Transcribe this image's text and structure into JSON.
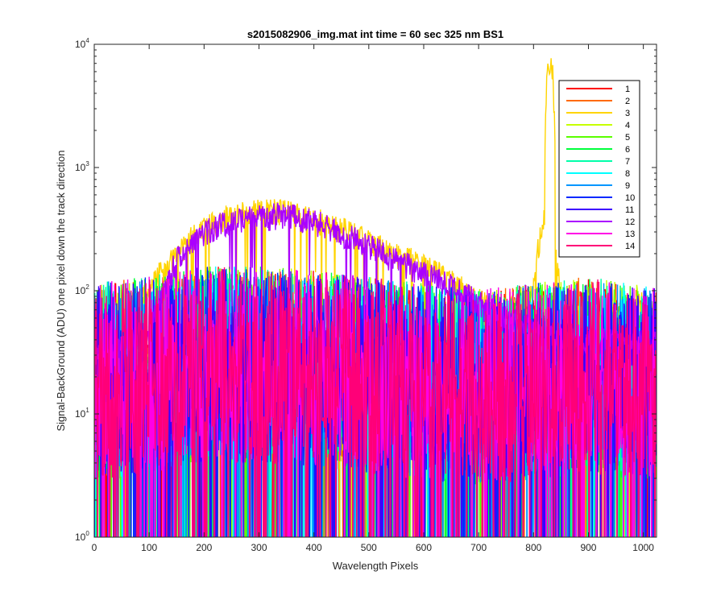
{
  "chart_data": {
    "type": "line",
    "title": "s2015082906_img.mat int time = 60 sec  325 nm BS1",
    "xlabel": "Wavelength Pixels",
    "ylabel": "Signal-BackGround (ADU) one pixel down the track direction",
    "xlim": [
      0,
      1024
    ],
    "ylim": [
      1,
      10000
    ],
    "yscale": "log",
    "xticks": [
      0,
      100,
      200,
      300,
      400,
      500,
      600,
      700,
      800,
      900,
      1000
    ],
    "yticks": [
      {
        "base": "10",
        "exp": "0",
        "value": 1
      },
      {
        "base": "10",
        "exp": "1",
        "value": 10
      },
      {
        "base": "10",
        "exp": "2",
        "value": 100
      },
      {
        "base": "10",
        "exp": "3",
        "value": 1000
      },
      {
        "base": "10",
        "exp": "4",
        "value": 10000
      }
    ],
    "grid": false,
    "legend_position": "top-right",
    "series": [
      {
        "name": "1",
        "color": "#ff0000",
        "profile": "noise",
        "x": [
          0,
          100,
          200,
          300,
          400,
          500,
          600,
          700,
          800,
          900,
          1020
        ],
        "y": [
          20,
          25,
          30,
          30,
          28,
          25,
          22,
          20,
          22,
          25,
          20
        ]
      },
      {
        "name": "2",
        "color": "#ff6a00",
        "profile": "noise",
        "x": [
          0,
          100,
          200,
          300,
          400,
          500,
          600,
          700,
          800,
          900,
          1020
        ],
        "y": [
          22,
          25,
          30,
          30,
          28,
          25,
          22,
          20,
          22,
          25,
          20
        ]
      },
      {
        "name": "3",
        "color": "#ffd400",
        "profile": "signal",
        "x": [
          0,
          60,
          100,
          150,
          200,
          250,
          300,
          350,
          400,
          450,
          500,
          550,
          600,
          650,
          700,
          750,
          800,
          820,
          825,
          830,
          835,
          840,
          850,
          900,
          950,
          1000,
          1020
        ],
        "y": [
          45,
          60,
          100,
          200,
          320,
          420,
          450,
          440,
          380,
          320,
          250,
          200,
          160,
          120,
          80,
          70,
          100,
          400,
          6000,
          7500,
          6000,
          200,
          80,
          60,
          70,
          80,
          60
        ]
      },
      {
        "name": "4",
        "color": "#c6ff00",
        "profile": "noise",
        "x": [
          0,
          100,
          200,
          300,
          400,
          500,
          600,
          700,
          800,
          900,
          1020
        ],
        "y": [
          22,
          25,
          30,
          30,
          28,
          25,
          22,
          20,
          22,
          25,
          20
        ]
      },
      {
        "name": "5",
        "color": "#5aff00",
        "profile": "noise",
        "x": [
          0,
          100,
          200,
          300,
          400,
          500,
          600,
          700,
          800,
          900,
          1020
        ],
        "y": [
          22,
          25,
          30,
          30,
          28,
          25,
          22,
          20,
          22,
          25,
          20
        ]
      },
      {
        "name": "6",
        "color": "#00ff3c",
        "profile": "noise",
        "x": [
          0,
          100,
          200,
          300,
          400,
          500,
          600,
          700,
          800,
          900,
          1020
        ],
        "y": [
          22,
          25,
          30,
          30,
          28,
          25,
          22,
          20,
          22,
          25,
          20
        ]
      },
      {
        "name": "7",
        "color": "#00ffaa",
        "profile": "noise",
        "x": [
          0,
          100,
          200,
          300,
          400,
          500,
          600,
          700,
          800,
          900,
          1020
        ],
        "y": [
          22,
          25,
          30,
          30,
          28,
          25,
          22,
          20,
          22,
          25,
          20
        ]
      },
      {
        "name": "8",
        "color": "#00ffff",
        "profile": "noise",
        "x": [
          0,
          100,
          200,
          300,
          400,
          500,
          600,
          700,
          800,
          900,
          1020
        ],
        "y": [
          22,
          25,
          30,
          30,
          28,
          25,
          22,
          20,
          22,
          25,
          20
        ]
      },
      {
        "name": "9",
        "color": "#0096ff",
        "profile": "noise",
        "x": [
          0,
          100,
          200,
          300,
          400,
          500,
          600,
          700,
          800,
          900,
          1020
        ],
        "y": [
          22,
          25,
          30,
          30,
          28,
          25,
          22,
          20,
          22,
          25,
          20
        ]
      },
      {
        "name": "10",
        "color": "#0028ff",
        "profile": "noise",
        "x": [
          0,
          100,
          200,
          300,
          400,
          500,
          600,
          700,
          800,
          900,
          1020
        ],
        "y": [
          22,
          25,
          30,
          30,
          28,
          25,
          22,
          20,
          22,
          25,
          20
        ]
      },
      {
        "name": "11",
        "color": "#3c00ff",
        "profile": "noise",
        "x": [
          0,
          100,
          200,
          300,
          400,
          500,
          600,
          700,
          800,
          900,
          1020
        ],
        "y": [
          22,
          25,
          30,
          30,
          28,
          25,
          22,
          20,
          22,
          25,
          20
        ]
      },
      {
        "name": "12",
        "color": "#aa00ff",
        "profile": "signal",
        "x": [
          0,
          60,
          100,
          130,
          150,
          200,
          250,
          300,
          350,
          400,
          450,
          500,
          550,
          600,
          650,
          700,
          750,
          800,
          850,
          900,
          950,
          1000,
          1020
        ],
        "y": [
          30,
          40,
          50,
          100,
          180,
          300,
          380,
          400,
          420,
          370,
          300,
          230,
          180,
          140,
          110,
          80,
          60,
          50,
          40,
          40,
          40,
          40,
          40
        ]
      },
      {
        "name": "13",
        "color": "#ff00e6",
        "profile": "noise",
        "x": [
          0,
          100,
          200,
          300,
          400,
          500,
          600,
          700,
          800,
          900,
          1020
        ],
        "y": [
          22,
          25,
          30,
          30,
          28,
          25,
          22,
          20,
          22,
          25,
          20
        ]
      },
      {
        "name": "14",
        "color": "#ff0078",
        "profile": "noise",
        "x": [
          0,
          100,
          200,
          300,
          400,
          500,
          600,
          700,
          800,
          900,
          1020
        ],
        "y": [
          22,
          25,
          30,
          30,
          28,
          25,
          22,
          20,
          22,
          25,
          20
        ]
      }
    ]
  }
}
